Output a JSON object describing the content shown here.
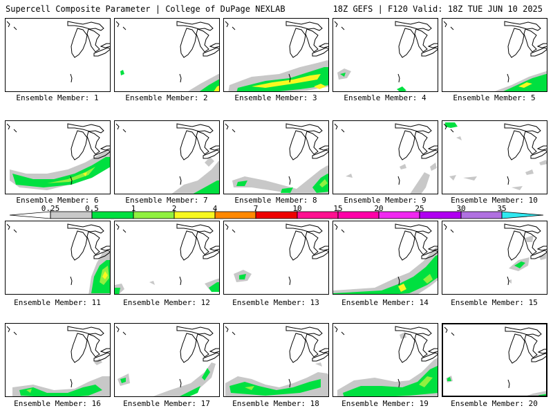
{
  "header": {
    "title": "Supercell Composite Parameter | College of DuPage NEXLAB",
    "run_info": "18Z GEFS | F120 Valid: 18Z TUE JUN 10 2025"
  },
  "legend": {
    "levels": [
      "0.25",
      "0.5",
      "1",
      "2",
      "4",
      "7",
      "10",
      "15",
      "20",
      "25",
      "30",
      "35"
    ],
    "colors": [
      "#c8c8c8",
      "#00e040",
      "#90f040",
      "#f8f820",
      "#ff8800",
      "#ee0000",
      "#ff1090",
      "#ff00a8",
      "#f028f0",
      "#b000f0",
      "#b070e0",
      "#30e8f0"
    ]
  },
  "panels": [
    {
      "label": "Ensemble Member: 1"
    },
    {
      "label": "Ensemble Member: 2"
    },
    {
      "label": "Ensemble Member: 3"
    },
    {
      "label": "Ensemble Member: 4"
    },
    {
      "label": "Ensemble Member: 5"
    },
    {
      "label": "Ensemble Member: 6"
    },
    {
      "label": "Ensemble Member: 7"
    },
    {
      "label": "Ensemble Member: 8"
    },
    {
      "label": "Ensemble Member: 9"
    },
    {
      "label": "Ensemble Member: 10"
    },
    {
      "label": "Ensemble Member: 11"
    },
    {
      "label": "Ensemble Member: 12"
    },
    {
      "label": "Ensemble Member: 13"
    },
    {
      "label": "Ensemble Member: 14"
    },
    {
      "label": "Ensemble Member: 15"
    },
    {
      "label": "Ensemble Member: 16"
    },
    {
      "label": "Ensemble Member: 17"
    },
    {
      "label": "Ensemble Member: 18"
    },
    {
      "label": "Ensemble Member: 19"
    },
    {
      "label": "Ensemble Member: 20"
    }
  ]
}
